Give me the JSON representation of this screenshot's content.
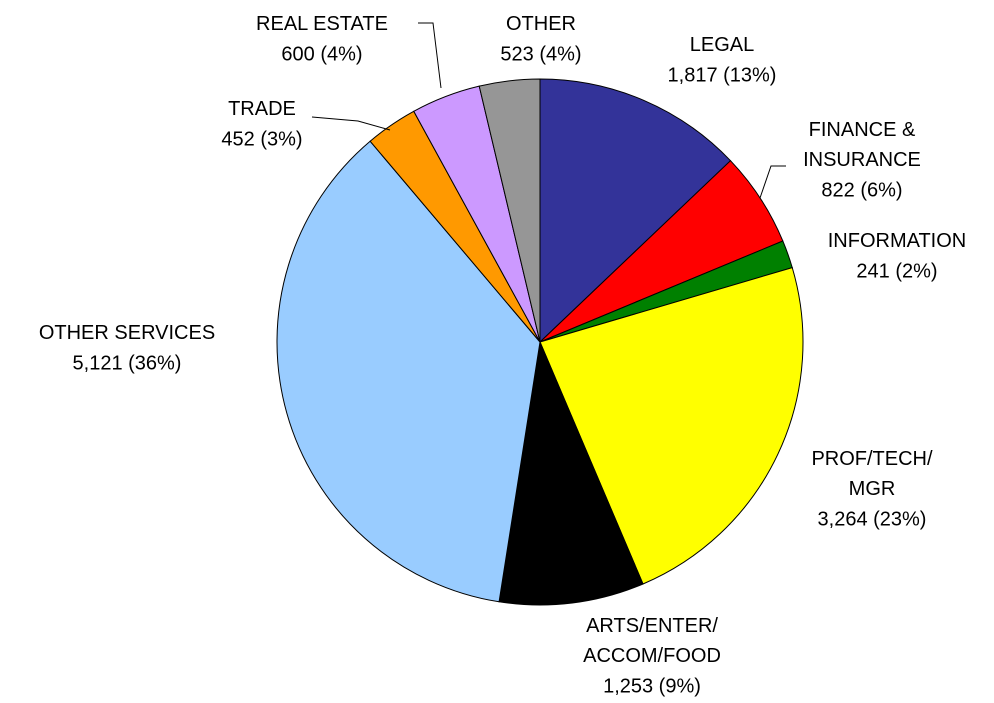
{
  "chart_data": {
    "type": "pie",
    "categories": [
      "LEGAL",
      "FINANCE &\nINSURANCE",
      "INFORMATION",
      "PROF/TECH/\nMGR",
      "ARTS/ENTER/\nACCOM/FOOD",
      "OTHER SERVICES",
      "TRADE",
      "REAL ESTATE",
      "OTHER"
    ],
    "values": [
      1817,
      822,
      241,
      3264,
      1253,
      5121,
      452,
      600,
      523
    ],
    "value_labels": [
      "1,817 (13%)",
      "822 (6%)",
      "241 (2%)",
      "3,264 (23%)",
      "1,253 (9%)",
      "5,121 (36%)",
      "452 (3%)",
      "600 (4%)",
      "523 (4%)"
    ],
    "colors": [
      "#333399",
      "#ff0000",
      "#008000",
      "#ffff00",
      "#000000",
      "#99ccff",
      "#ff9900",
      "#cc99ff",
      "#969696"
    ]
  }
}
